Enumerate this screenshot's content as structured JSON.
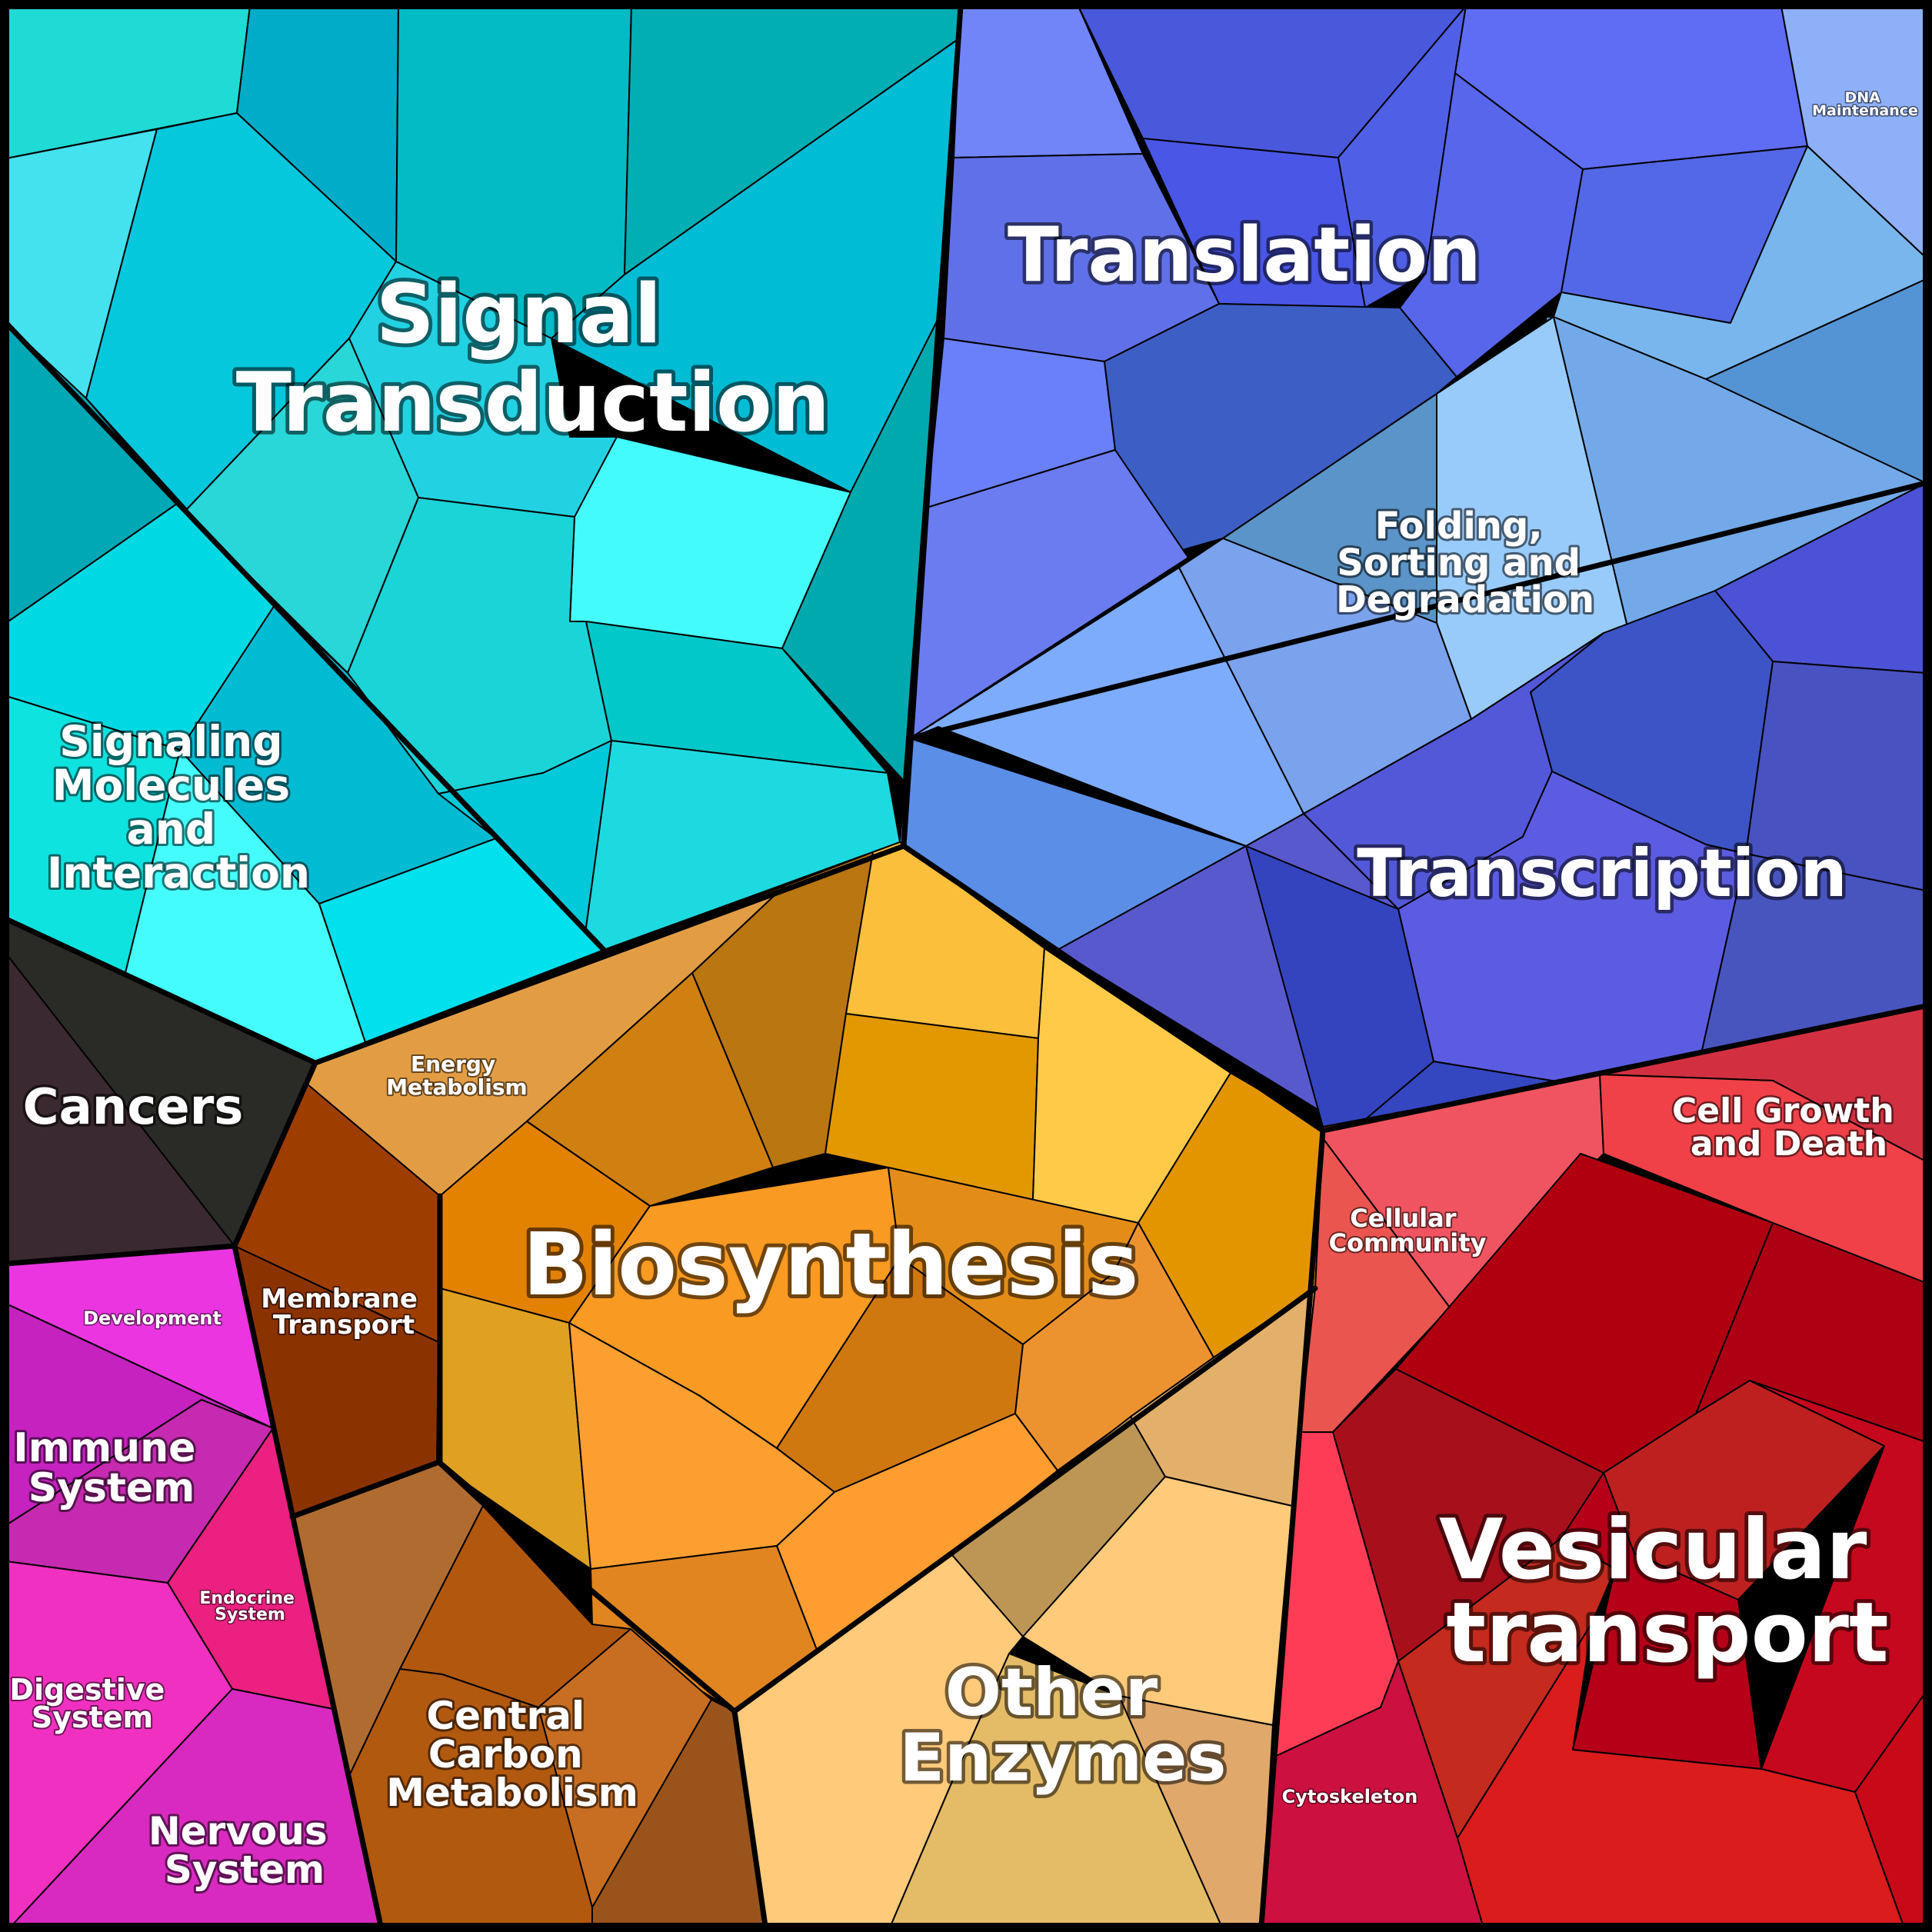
{
  "diagram": {
    "type": "voronoi-treemap",
    "border_color": "#000000",
    "label_color": "#ffffff",
    "regions": [
      {
        "name": "Signal Transduction",
        "label": [
          "Signal",
          "Transduction"
        ],
        "color": "#00bcd0"
      },
      {
        "name": "Signaling Molecules and Interaction",
        "label": [
          "Signaling",
          "Molecules",
          "and",
          "Interaction"
        ],
        "color": "#00d8e6"
      },
      {
        "name": "Translation",
        "label": [
          "Translation"
        ],
        "color": "#5a66e6"
      },
      {
        "name": "DNA Maintenance",
        "label": [
          "DNA",
          "Maintenance"
        ],
        "color": "#8eacf6"
      },
      {
        "name": "Folding, Sorting and Degradation",
        "label": [
          "Folding,",
          "Sorting and",
          "Degradation"
        ],
        "color": "#7ea8f2"
      },
      {
        "name": "Transcription",
        "label": [
          "Transcription"
        ],
        "color": "#4f54d6"
      },
      {
        "name": "Cancers",
        "label": [
          "Cancers"
        ],
        "color": "#2d2a2a"
      },
      {
        "name": "Energy Metabolism",
        "label": [
          "Energy",
          "Metabolism"
        ],
        "color": "#e29d44"
      },
      {
        "name": "Biosynthesis",
        "label": [
          "Biosynthesis"
        ],
        "color": "#f19a22"
      },
      {
        "name": "Membrane Transport",
        "label": [
          "Membrane",
          "Transport"
        ],
        "color": "#8b3300"
      },
      {
        "name": "Central Carbon Metabolism",
        "label": [
          "Central",
          "Carbon",
          "Metabolism"
        ],
        "color": "#b1560f"
      },
      {
        "name": "Other Enzymes",
        "label": [
          "Other",
          "Enzymes"
        ],
        "color": "#f0c070"
      },
      {
        "name": "Cellular Community",
        "label": [
          "Cellular",
          "Community"
        ],
        "color": "#ec5552"
      },
      {
        "name": "Cell Growth and Death",
        "label": [
          "Cell Growth",
          "and Death"
        ],
        "color": "#f04048"
      },
      {
        "name": "Vesicular transport",
        "label": [
          "Vesicular",
          "transport"
        ],
        "color": "#c0101a"
      },
      {
        "name": "Cytoskeleton",
        "label": [
          "Cytoskeleton"
        ],
        "color": "#cc1040"
      },
      {
        "name": "Development",
        "label": [
          "Development"
        ],
        "color": "#ea35e0"
      },
      {
        "name": "Immune System",
        "label": [
          "Immune",
          "System"
        ],
        "color": "#c522c0"
      },
      {
        "name": "Endocrine System",
        "label": [
          "Endocrine",
          "System"
        ],
        "color": "#eb2080"
      },
      {
        "name": "Digestive System",
        "label": [
          "Digestive",
          "System"
        ],
        "color": "#f030c0"
      },
      {
        "name": "Nervous System",
        "label": [
          "Nervous",
          "System"
        ],
        "color": "#d82ac0"
      }
    ]
  }
}
